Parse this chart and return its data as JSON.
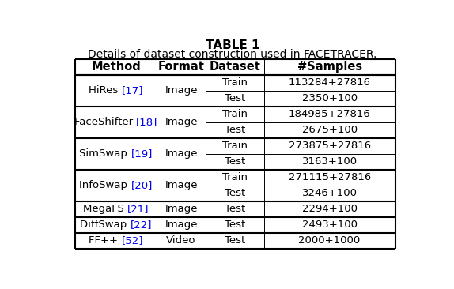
{
  "title": "TABLE 1",
  "subtitle_prefix": "Details of dataset construction used in ",
  "subtitle_suffix": "FACETRACER.",
  "headers": [
    "Method",
    "Format",
    "Dataset",
    "#Samples"
  ],
  "groups": [
    {
      "method_base": "HiRes ",
      "method_ref": "[17]",
      "format": "Image",
      "subrows": [
        [
          "Train",
          "113284+27816"
        ],
        [
          "Test",
          "2350+100"
        ]
      ]
    },
    {
      "method_base": "FaceShifter ",
      "method_ref": "[18]",
      "format": "Image",
      "subrows": [
        [
          "Train",
          "184985+27816"
        ],
        [
          "Test",
          "2675+100"
        ]
      ]
    },
    {
      "method_base": "SimSwap ",
      "method_ref": "[19]",
      "format": "Image",
      "subrows": [
        [
          "Train",
          "273875+27816"
        ],
        [
          "Test",
          "3163+100"
        ]
      ]
    },
    {
      "method_base": "InfoSwap ",
      "method_ref": "[20]",
      "format": "Image",
      "subrows": [
        [
          "Train",
          "271115+27816"
        ],
        [
          "Test",
          "3246+100"
        ]
      ]
    },
    {
      "method_base": "MegaFS ",
      "method_ref": "[21]",
      "format": "Image",
      "subrows": [
        [
          "Test",
          "2294+100"
        ]
      ]
    },
    {
      "method_base": "DiffSwap ",
      "method_ref": "[22]",
      "format": "Image",
      "subrows": [
        [
          "Test",
          "2493+100"
        ]
      ]
    },
    {
      "method_base": "FF++ ",
      "method_ref": "[52]",
      "format": "Video",
      "subrows": [
        [
          "Test",
          "2000+1000"
        ]
      ]
    }
  ],
  "ref_color": "#0000EE",
  "text_color": "#000000",
  "lw_thick": 1.5,
  "lw_thin": 0.7,
  "font_size": 9.5,
  "header_font_size": 10.5,
  "title_font_size": 11.0,
  "subtitle_font_size": 10.0
}
